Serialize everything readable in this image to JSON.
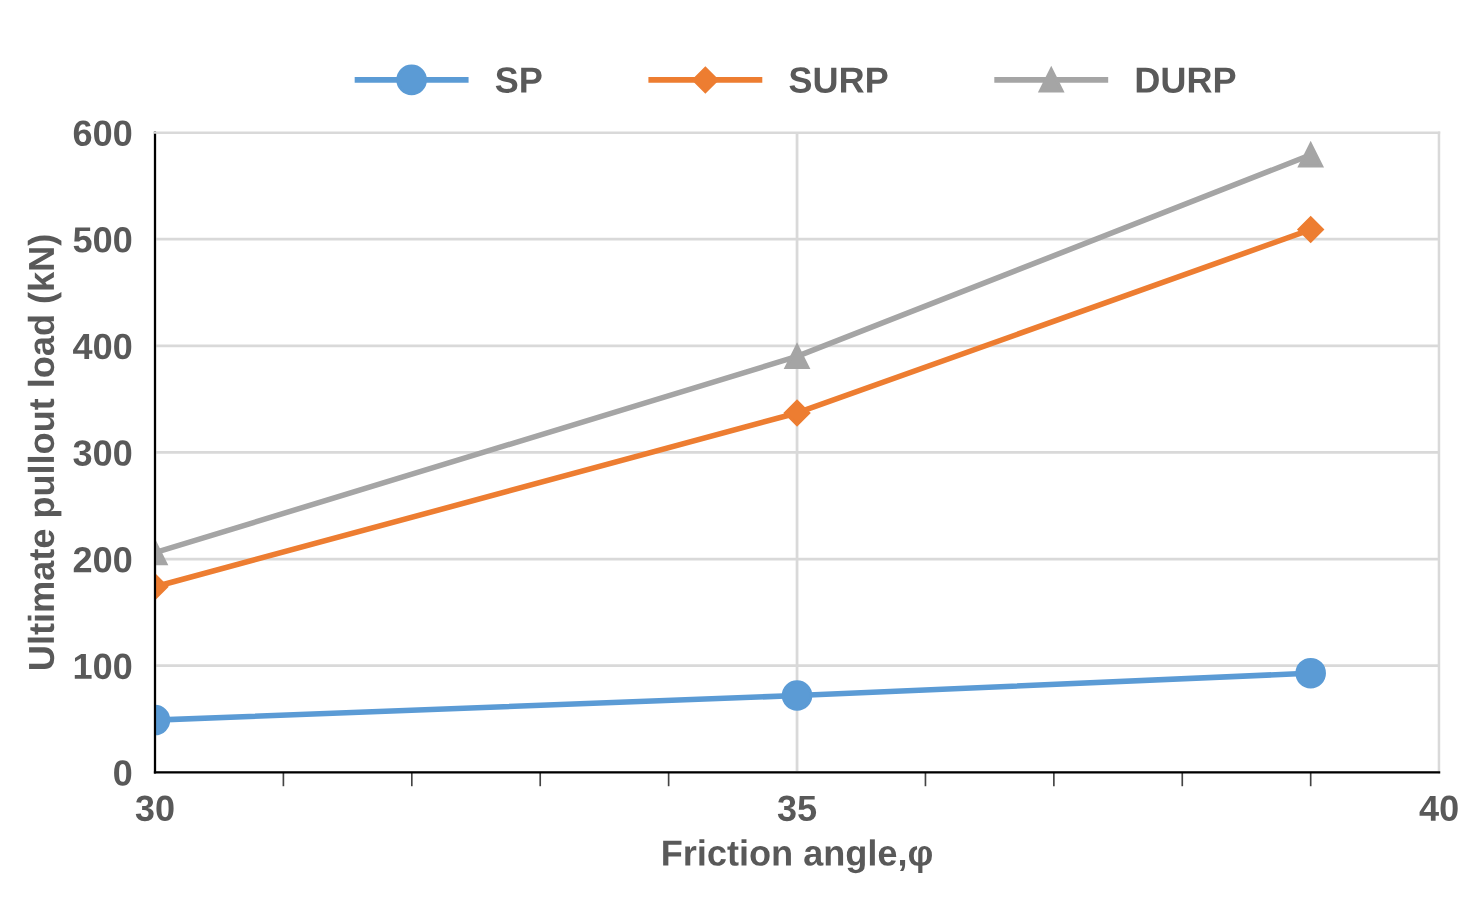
{
  "chart_data": {
    "type": "line",
    "xlabel": "Friction angle,φ",
    "ylabel": "Ultimate pullout load (kN)",
    "x": [
      30,
      35,
      39
    ],
    "series": [
      {
        "name": "SP",
        "color": "#5b9bd5",
        "values": [
          49,
          72,
          93
        ],
        "marker": "circle"
      },
      {
        "name": "SURP",
        "color": "#ed7d31",
        "values": [
          174,
          337,
          509
        ],
        "marker": "diamond"
      },
      {
        "name": "DURP",
        "color": "#a5a5a5",
        "values": [
          206,
          390,
          579
        ],
        "marker": "triangle"
      }
    ],
    "xlim": [
      30,
      40
    ],
    "xticks": [
      30,
      35,
      40
    ],
    "ylim": [
      0,
      600
    ],
    "yticks": [
      0,
      100,
      200,
      300,
      400,
      500,
      600
    ],
    "grid": true,
    "legend": "top",
    "line_style": "solid"
  }
}
